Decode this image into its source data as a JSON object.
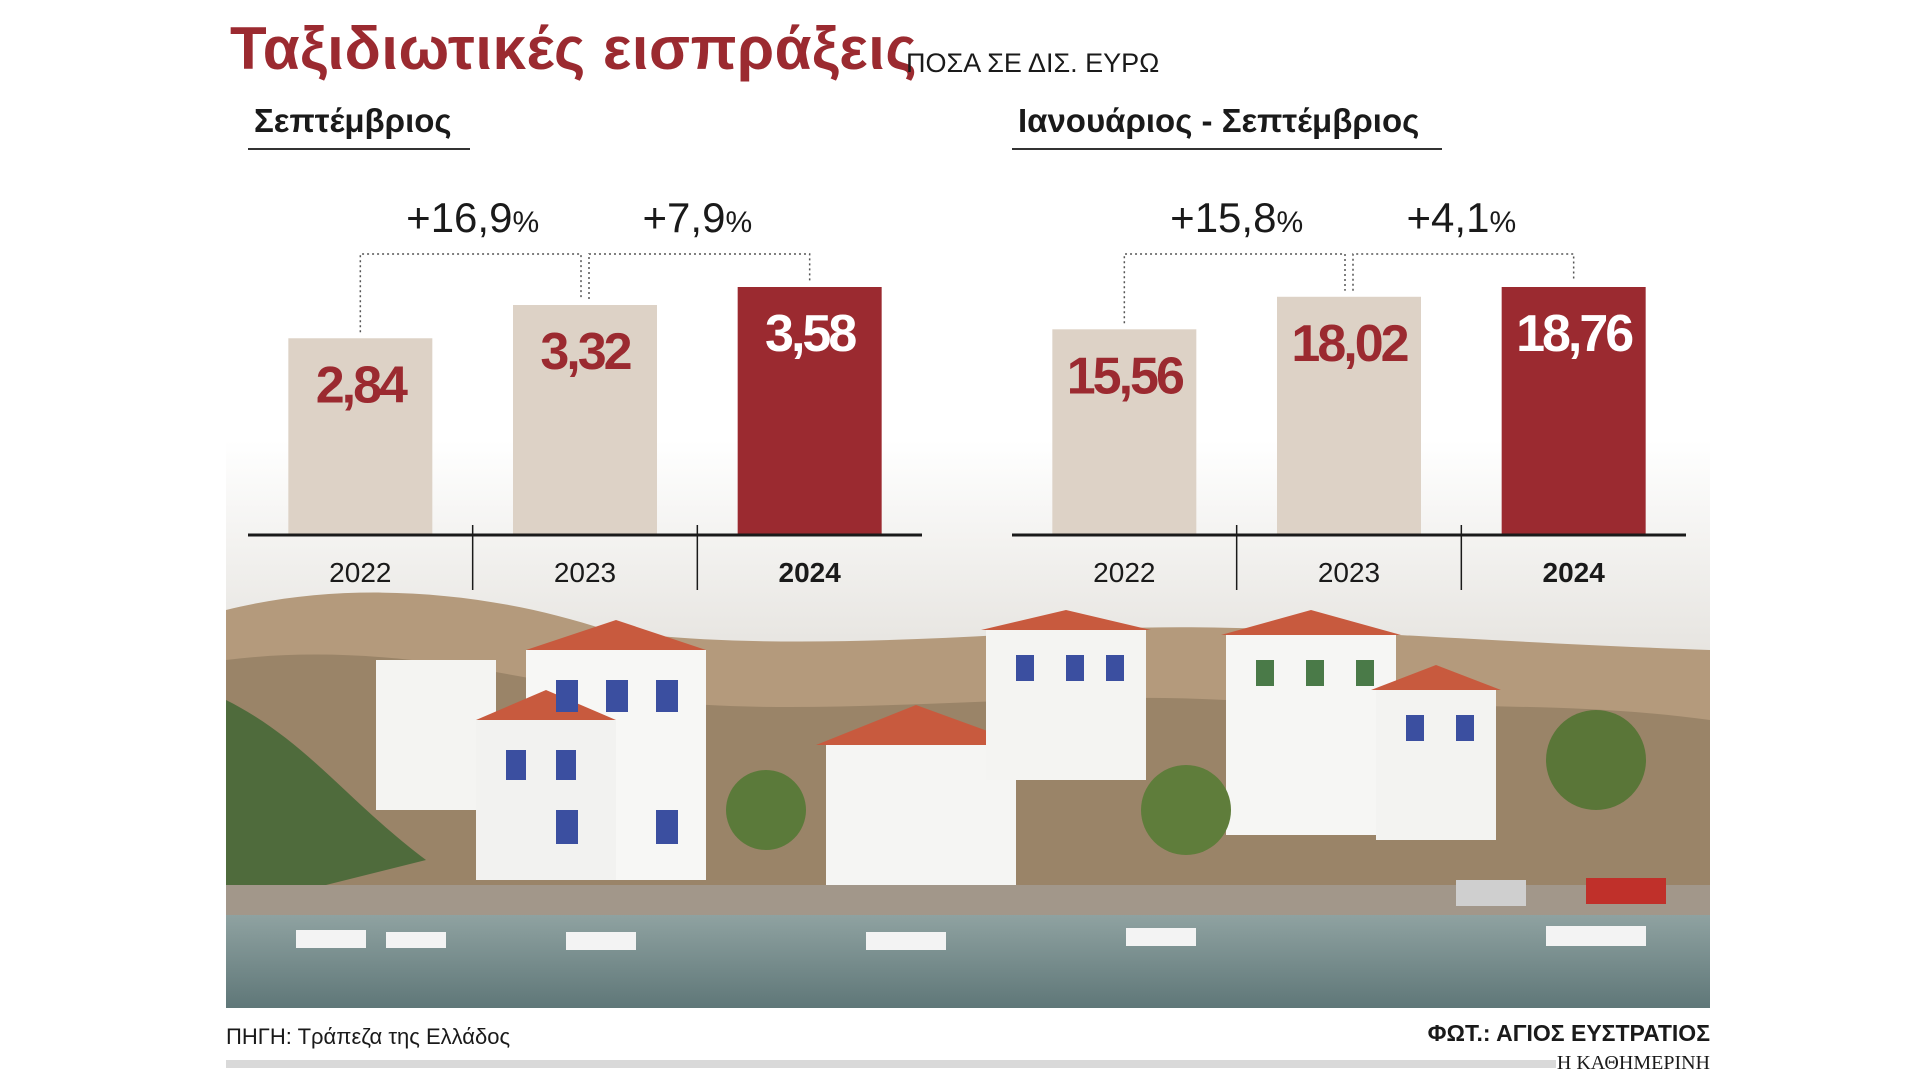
{
  "header": {
    "title": "Ταξιδιωτικές εισπράξεις",
    "subtitle": "ΠΟΣΑ ΣΕ ΔΙΣ. ΕΥΡΩ"
  },
  "colors": {
    "accent": "#9b2a30",
    "bar_light": "#ddd2c6",
    "bar_highlight": "#9b2a30",
    "value_text_dark": "#9b2a30",
    "value_text_light": "#ffffff"
  },
  "chart_data": [
    {
      "type": "bar",
      "title": "Σεπτέμβριος",
      "categories": [
        "2022",
        "2023",
        "2024"
      ],
      "values": [
        2.84,
        3.32,
        3.58
      ],
      "value_labels": [
        "2,84",
        "3,32",
        "3,58"
      ],
      "highlight_index": 2,
      "changes": [
        {
          "from": 0,
          "to": 1,
          "label": "+16,9",
          "unit": "%"
        },
        {
          "from": 1,
          "to": 2,
          "label": "+7,9",
          "unit": "%"
        }
      ],
      "ylim": [
        0,
        3.58
      ],
      "xlabel": "",
      "ylabel": ""
    },
    {
      "type": "bar",
      "title": "Ιανουάριος - Σεπτέμβριος",
      "categories": [
        "2022",
        "2023",
        "2024"
      ],
      "values": [
        15.56,
        18.02,
        18.76
      ],
      "value_labels": [
        "15,56",
        "18,02",
        "18,76"
      ],
      "highlight_index": 2,
      "changes": [
        {
          "from": 0,
          "to": 1,
          "label": "+15,8",
          "unit": "%"
        },
        {
          "from": 1,
          "to": 2,
          "label": "+4,1",
          "unit": "%"
        }
      ],
      "ylim": [
        0,
        18.76
      ],
      "xlabel": "",
      "ylabel": ""
    }
  ],
  "footer": {
    "source": "ΠΗΓΗ: Τράπεζα της Ελλάδος",
    "photo_credit": "ΦΩΤ.: ΑΓΙΟΣ ΕΥΣΤΡΑΤΙΟΣ",
    "publisher": "Η ΚΑΘΗΜΕΡΙΝΗ"
  }
}
